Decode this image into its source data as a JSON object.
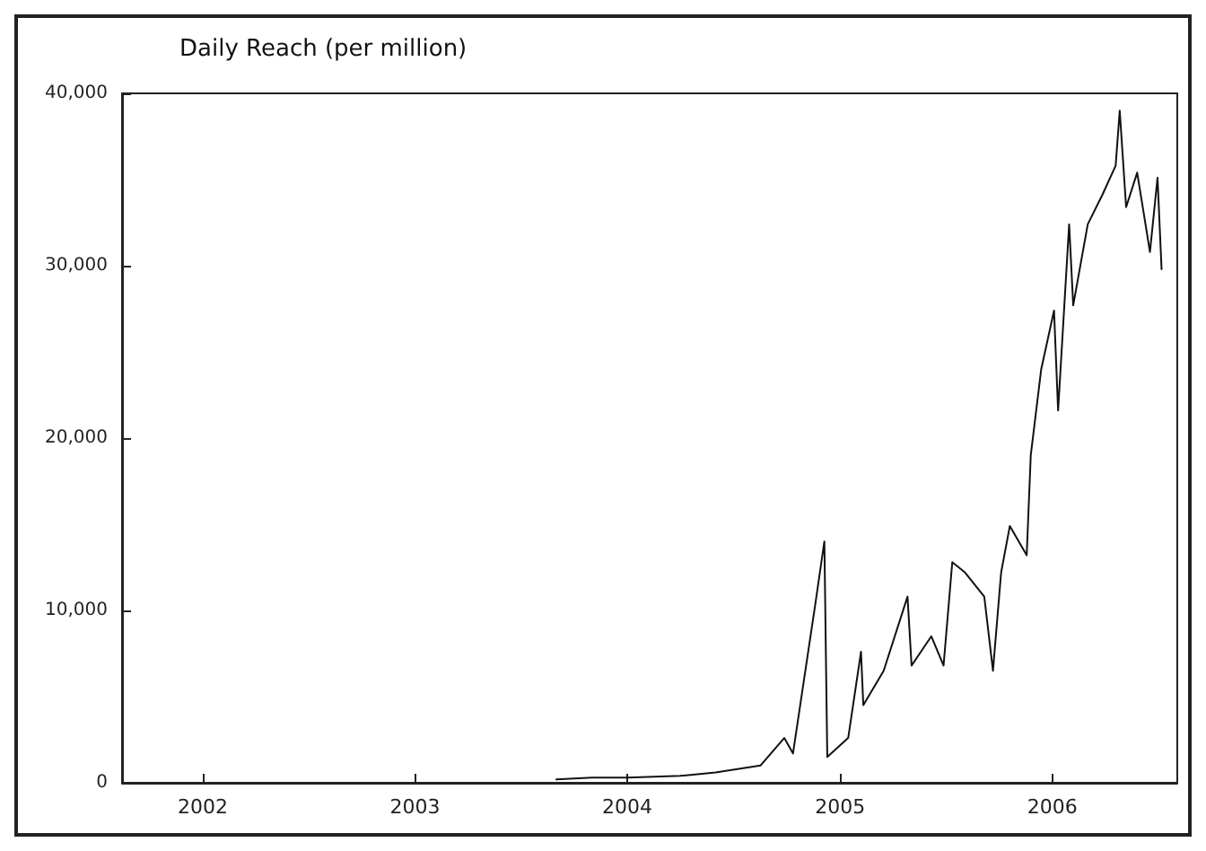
{
  "chart_data": {
    "type": "line",
    "title": "Daily Reach (per million)",
    "xlim": [
      "2001-08-15",
      "2006-08-04"
    ],
    "ylim": [
      0,
      40000
    ],
    "xticks": [
      {
        "value": "2002-01-01",
        "label": "2002"
      },
      {
        "value": "2003-01-01",
        "label": "2003"
      },
      {
        "value": "2004-01-01",
        "label": "2004"
      },
      {
        "value": "2005-01-01",
        "label": "2005"
      },
      {
        "value": "2006-01-01",
        "label": "2006"
      }
    ],
    "yticks": [
      {
        "value": 0,
        "label": "0"
      },
      {
        "value": 10000,
        "label": "10,000"
      },
      {
        "value": 20000,
        "label": "20,000"
      },
      {
        "value": 30000,
        "label": "30,000"
      },
      {
        "value": 40000,
        "label": "40,000"
      }
    ],
    "grid": false,
    "marker": "none",
    "line_style": "solid",
    "series": [
      {
        "color": "#111111",
        "x": [
          "2003-09-01",
          "2003-11-01",
          "2004-01-01",
          "2004-04-01",
          "2004-06-01",
          "2004-08-17",
          "2004-09-27",
          "2004-10-12",
          "2004-11-20",
          "2004-12-05",
          "2004-12-10",
          "2005-01-15",
          "2005-02-06",
          "2005-02-10",
          "2005-03-17",
          "2005-04-27",
          "2005-05-04",
          "2005-06-07",
          "2005-06-28",
          "2005-07-13",
          "2005-08-04",
          "2005-09-06",
          "2005-09-21",
          "2005-10-05",
          "2005-10-20",
          "2005-11-18",
          "2005-11-25",
          "2005-12-13",
          "2006-01-04",
          "2006-01-11",
          "2006-01-30",
          "2006-02-06",
          "2006-03-03",
          "2006-03-28",
          "2006-04-20",
          "2006-04-27",
          "2006-05-08",
          "2006-05-27",
          "2006-06-18",
          "2006-07-01",
          "2006-07-08"
        ],
        "values": [
          200,
          300,
          300,
          400,
          600,
          1000,
          2600,
          1700,
          10500,
          14000,
          1500,
          2600,
          7600,
          4500,
          6500,
          10800,
          6800,
          8500,
          6800,
          12800,
          12200,
          10800,
          6500,
          12200,
          14900,
          13200,
          19000,
          24000,
          27400,
          21600,
          32400,
          27700,
          32400,
          34100,
          35800,
          39000,
          33400,
          35400,
          30800,
          35100,
          29800
        ]
      }
    ]
  }
}
